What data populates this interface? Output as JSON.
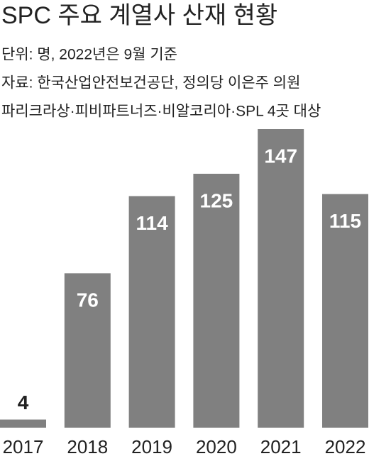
{
  "chart_data": {
    "type": "bar",
    "title": "SPC 주요 계열사 산재 현황",
    "notes": [
      "단위: 명, 2022년은 9월 기준",
      "자료: 한국산업안전보건공단,  정의당 이은주 의원",
      "파리크라상·피비파트너즈·비알코리아·SPL 4곳 대상"
    ],
    "categories": [
      "2017",
      "2018",
      "2019",
      "2020",
      "2021",
      "2022"
    ],
    "values": [
      4,
      76,
      114,
      125,
      147,
      115
    ],
    "color": "#808080"
  }
}
